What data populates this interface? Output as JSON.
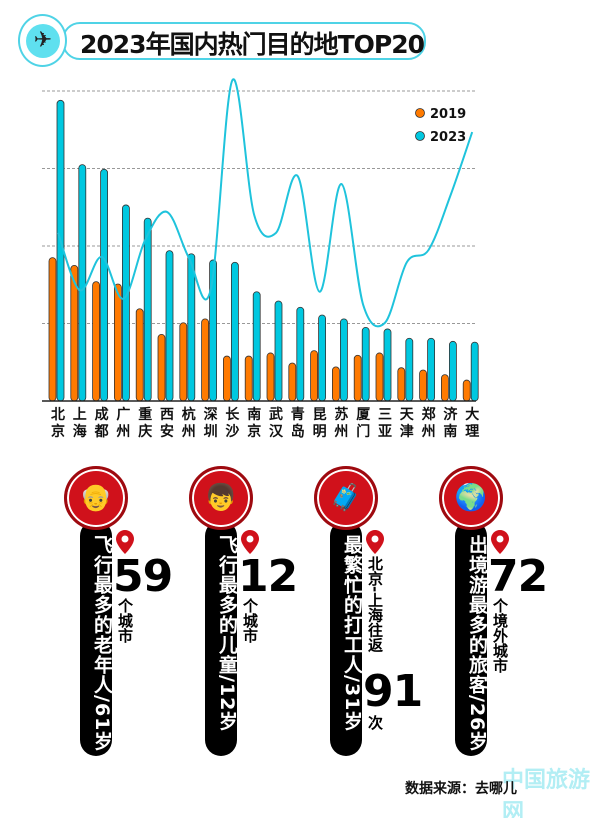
{
  "header": {
    "title": "2023年国内热门目的地TOP20",
    "icon": "airplane-icon"
  },
  "chart_data": {
    "type": "bar",
    "title": "2023年国内热门目的地TOP20",
    "categories": [
      "北京",
      "上海",
      "成都",
      "广州",
      "重庆",
      "西安",
      "杭州",
      "深圳",
      "长沙",
      "南京",
      "武汉",
      "青岛",
      "昆明",
      "苏州",
      "厦门",
      "三亚",
      "天津",
      "郑州",
      "济南",
      "大理"
    ],
    "series": [
      {
        "name": "2019",
        "color": "#ff7a00",
        "values": [
          1.85,
          1.75,
          1.54,
          1.51,
          1.19,
          0.86,
          1.01,
          1.06,
          0.58,
          0.58,
          0.62,
          0.49,
          0.65,
          0.44,
          0.59,
          0.62,
          0.43,
          0.4,
          0.34,
          0.27
        ]
      },
      {
        "name": "2023",
        "color": "#00c8e0",
        "values": [
          3.88,
          3.05,
          2.99,
          2.53,
          2.36,
          1.94,
          1.9,
          1.82,
          1.79,
          1.41,
          1.29,
          1.21,
          1.11,
          1.06,
          0.95,
          0.93,
          0.81,
          0.81,
          0.77,
          0.76
        ]
      }
    ],
    "line": {
      "color": "#1fc3dc",
      "values": [
        2.17,
        1.43,
        1.86,
        1.32,
        2.08,
        2.44,
        1.85,
        1.43,
        4.14,
        2.4,
        2.17,
        2.9,
        1.41,
        2.8,
        1.24,
        1.01,
        1.79,
        1.95,
        2.65,
        3.47
      ]
    },
    "ylim": [
      0,
      4
    ],
    "grid": true,
    "legend": "top-right",
    "xlabel": "",
    "ylabel": ""
  },
  "stats": [
    {
      "label": "飞行最多的老年人/61岁",
      "number": "59",
      "unit": "个城市",
      "icon": "elderly-face-icon"
    },
    {
      "label": "飞行最多的儿童/12岁",
      "number": "12",
      "unit": "个城市",
      "icon": "child-face-icon"
    },
    {
      "label": "最繁忙的打工人/31岁",
      "route": "北京-上海往返",
      "number": "91",
      "unit": "次",
      "icon": "suitcase-icon"
    },
    {
      "label": "出境游最多的旅客/26岁",
      "number": "72",
      "unit": "个境外城市",
      "icon": "globe-icon"
    }
  ],
  "footer": {
    "source": "数据来源：去哪儿",
    "watermark": "中国旅游网"
  }
}
